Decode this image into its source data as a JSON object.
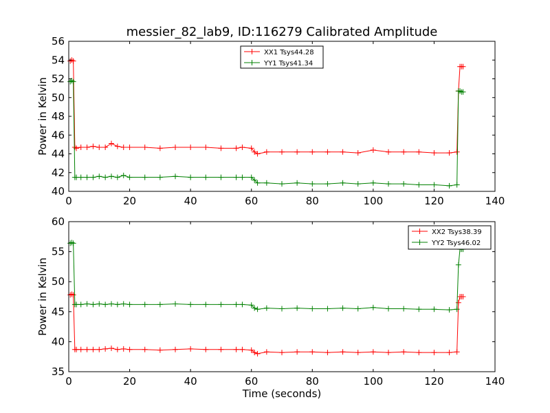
{
  "figure": {
    "title": "messier_82_lab9, ID:116279 Calibrated Amplitude"
  },
  "chart_data": [
    {
      "type": "line",
      "title": "messier_82_lab9, ID:116279 Calibrated Amplitude",
      "xlabel": "",
      "ylabel": "Power in Kelvin",
      "xlim": [
        0,
        140
      ],
      "ylim": [
        40,
        56
      ],
      "xticks": [
        0,
        20,
        40,
        60,
        80,
        100,
        120,
        140
      ],
      "yticks": [
        40,
        42,
        44,
        46,
        48,
        50,
        52,
        54,
        56
      ],
      "legend_position": "top-center",
      "grid": false,
      "series": [
        {
          "name": "XX1 Tsys44.28",
          "color": "#ff0000",
          "marker": "plus",
          "x": [
            0.5,
            1,
            1.5,
            2,
            2.5,
            4,
            6,
            8,
            10,
            12,
            14,
            16,
            18,
            20,
            25,
            30,
            35,
            40,
            45,
            50,
            55,
            57,
            60,
            61,
            62,
            65,
            70,
            75,
            80,
            85,
            90,
            95,
            100,
            105,
            110,
            115,
            120,
            125,
            127.5,
            128,
            128.5,
            129,
            129.5
          ],
          "values": [
            53.9,
            54.0,
            53.9,
            44.7,
            44.6,
            44.7,
            44.7,
            44.8,
            44.7,
            44.7,
            45.1,
            44.8,
            44.7,
            44.7,
            44.7,
            44.6,
            44.7,
            44.7,
            44.7,
            44.6,
            44.6,
            44.7,
            44.6,
            44.2,
            44.0,
            44.2,
            44.2,
            44.2,
            44.2,
            44.2,
            44.2,
            44.1,
            44.4,
            44.2,
            44.2,
            44.2,
            44.1,
            44.1,
            44.2,
            50.7,
            53.3,
            53.3,
            53.3
          ]
        },
        {
          "name": "YY1 Tsys41.34",
          "color": "#008000",
          "marker": "plus",
          "x": [
            0.5,
            1,
            1.5,
            2,
            2.5,
            4,
            6,
            8,
            10,
            12,
            14,
            16,
            18,
            20,
            25,
            30,
            35,
            40,
            45,
            50,
            55,
            57,
            60,
            61,
            62,
            65,
            70,
            75,
            80,
            85,
            90,
            95,
            100,
            105,
            110,
            115,
            120,
            125,
            127.5,
            128,
            128.5,
            129,
            129.5
          ],
          "values": [
            51.7,
            51.8,
            51.7,
            41.5,
            41.5,
            41.5,
            41.5,
            41.5,
            41.6,
            41.5,
            41.6,
            41.5,
            41.7,
            41.5,
            41.5,
            41.5,
            41.6,
            41.5,
            41.5,
            41.5,
            41.5,
            41.5,
            41.5,
            41.2,
            40.9,
            40.9,
            40.8,
            40.9,
            40.8,
            40.8,
            40.9,
            40.8,
            40.9,
            40.8,
            40.8,
            40.7,
            40.7,
            40.6,
            40.7,
            50.7,
            50.7,
            50.6,
            50.6
          ]
        }
      ]
    },
    {
      "type": "line",
      "title": "",
      "xlabel": "Time (seconds)",
      "ylabel": "Power in Kelvin",
      "xlim": [
        0,
        140
      ],
      "ylim": [
        35,
        60
      ],
      "xticks": [
        0,
        20,
        40,
        60,
        80,
        100,
        120,
        140
      ],
      "yticks": [
        35,
        40,
        45,
        50,
        55,
        60
      ],
      "legend_position": "top-right",
      "grid": false,
      "series": [
        {
          "name": "XX2 Tsys38.39",
          "color": "#ff0000",
          "marker": "plus",
          "x": [
            0.5,
            1,
            1.5,
            2,
            2.5,
            4,
            6,
            8,
            10,
            12,
            14,
            16,
            18,
            20,
            25,
            30,
            35,
            40,
            45,
            50,
            55,
            57,
            60,
            61,
            62,
            65,
            70,
            75,
            80,
            85,
            90,
            95,
            100,
            105,
            110,
            115,
            120,
            125,
            127.5,
            128,
            128.5,
            129,
            129.5
          ],
          "values": [
            47.8,
            47.9,
            47.8,
            38.7,
            38.7,
            38.7,
            38.7,
            38.7,
            38.7,
            38.8,
            38.9,
            38.7,
            38.8,
            38.7,
            38.7,
            38.6,
            38.7,
            38.8,
            38.7,
            38.7,
            38.7,
            38.7,
            38.6,
            38.2,
            38.0,
            38.3,
            38.2,
            38.3,
            38.3,
            38.2,
            38.3,
            38.2,
            38.3,
            38.2,
            38.3,
            38.2,
            38.2,
            38.2,
            38.3,
            46.5,
            47.5,
            47.5,
            47.5
          ]
        },
        {
          "name": "YY2 Tsys46.02",
          "color": "#008000",
          "marker": "plus",
          "x": [
            0.5,
            1,
            1.5,
            2,
            2.5,
            4,
            6,
            8,
            10,
            12,
            14,
            16,
            18,
            20,
            25,
            30,
            35,
            40,
            45,
            50,
            55,
            57,
            60,
            61,
            62,
            65,
            70,
            75,
            80,
            85,
            90,
            95,
            100,
            105,
            110,
            115,
            120,
            125,
            127.5,
            128,
            128.5,
            129,
            129.5
          ],
          "values": [
            56.4,
            56.5,
            56.4,
            46.2,
            46.2,
            46.2,
            46.3,
            46.2,
            46.3,
            46.2,
            46.3,
            46.2,
            46.3,
            46.2,
            46.2,
            46.2,
            46.3,
            46.2,
            46.2,
            46.2,
            46.2,
            46.2,
            46.1,
            45.6,
            45.4,
            45.6,
            45.5,
            45.6,
            45.5,
            45.5,
            45.6,
            45.5,
            45.7,
            45.5,
            45.5,
            45.4,
            45.4,
            45.3,
            45.4,
            52.8,
            55.4,
            55.4,
            55.4
          ]
        }
      ]
    }
  ]
}
